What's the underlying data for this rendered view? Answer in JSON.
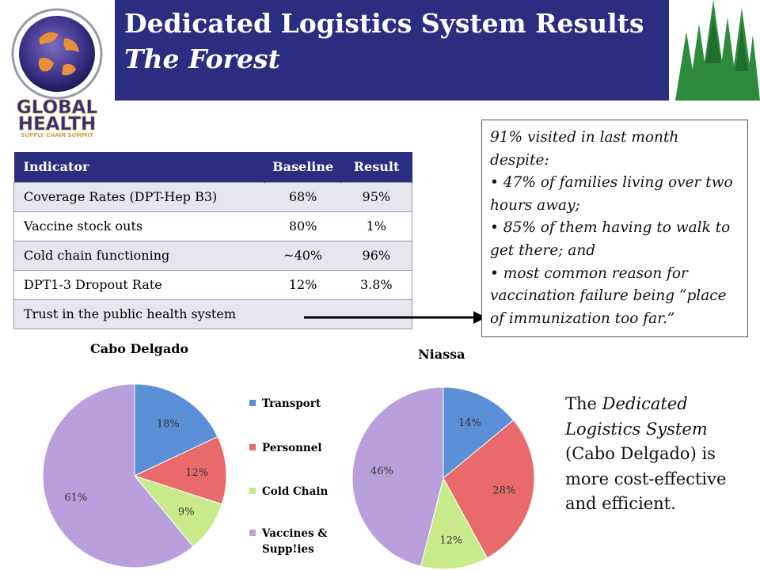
{
  "header": {
    "title": "Dedicated Logistics System Results",
    "subtitle": "The Forest"
  },
  "logo": {
    "line1": "GLOBAL",
    "line2": "HEALTH",
    "line3": "SUPPLY CHAIN SUMMIT"
  },
  "table": {
    "headers": [
      "Indicator",
      "Baseline",
      "Result"
    ],
    "rows": [
      [
        "Coverage Rates (DPT-Hep B3)",
        "68%",
        "95%"
      ],
      [
        "Vaccine stock outs",
        "80%",
        "1%"
      ],
      [
        "Cold chain functioning",
        "~40%",
        "96%"
      ],
      [
        "DPT1-3 Dropout Rate",
        "12%",
        "3.8%"
      ],
      [
        "Trust in the public health system",
        "",
        ""
      ]
    ]
  },
  "callout": {
    "intro": "91% visited  in last month despite:",
    "bullets": [
      "47% of families living over two hours away;",
      "85% of them having to walk to get there; and",
      "most common reason for vaccination failure being “place of immunization too far.”"
    ]
  },
  "conclusion": {
    "part1": "The ",
    "italic": "Dedicated Logistics System",
    "part2": " (Cabo Delgado) is more cost-effective and efficient."
  },
  "colors": {
    "banner": "#2b2e80",
    "transport": "#5b8fd6",
    "personnel": "#e86a6a",
    "cold_chain": "#c8ec8c",
    "vaccines": "#b9a0dc"
  },
  "chart_data": [
    {
      "type": "pie",
      "title": "Cabo Delgado",
      "categories": [
        "Transport",
        "Personnel",
        "Cold Chain",
        "Vaccines & Supp!ies"
      ],
      "values": [
        18,
        12,
        9,
        61
      ],
      "labels": [
        "18%",
        "12%",
        "9%",
        "61%"
      ],
      "legend": "right"
    },
    {
      "type": "pie",
      "title": "Niassa",
      "categories": [
        "Transport",
        "Personnel",
        "Cold Chain",
        "Vaccines & Supp!ies"
      ],
      "values": [
        14,
        28,
        12,
        46
      ],
      "labels": [
        "14%",
        "28%",
        "12%",
        "46%"
      ],
      "legend": "none"
    }
  ]
}
